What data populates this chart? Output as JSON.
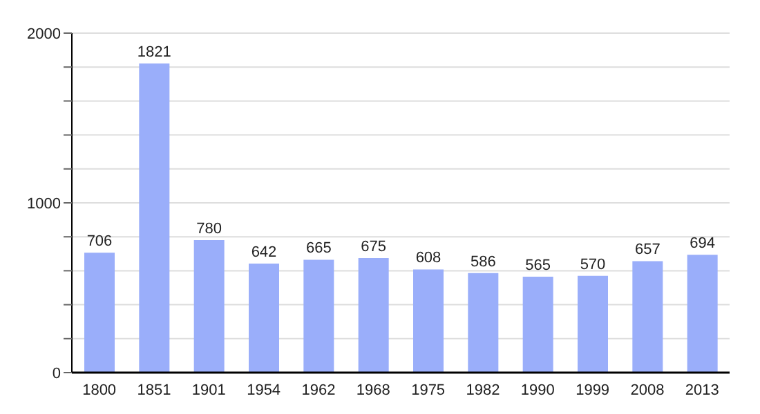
{
  "chart_data": {
    "type": "bar",
    "categories": [
      "1800",
      "1851",
      "1901",
      "1954",
      "1962",
      "1968",
      "1975",
      "1982",
      "1990",
      "1999",
      "2008",
      "2013"
    ],
    "values": [
      706,
      1821,
      780,
      642,
      665,
      675,
      608,
      586,
      565,
      570,
      657,
      694
    ],
    "color": "#9aaefa",
    "ylim": [
      0,
      2000
    ],
    "yticks": [
      0,
      {
        "value": 200,
        "label": null
      },
      {
        "value": 400,
        "label": null
      },
      {
        "value": 600,
        "label": null
      },
      {
        "value": 800,
        "label": null
      },
      1000,
      {
        "value": 1200,
        "label": null
      },
      {
        "value": 1400,
        "label": null
      },
      {
        "value": 1600,
        "label": null
      },
      {
        "value": 1800,
        "label": null
      },
      2000
    ],
    "grid": "y",
    "data_labels": true
  }
}
